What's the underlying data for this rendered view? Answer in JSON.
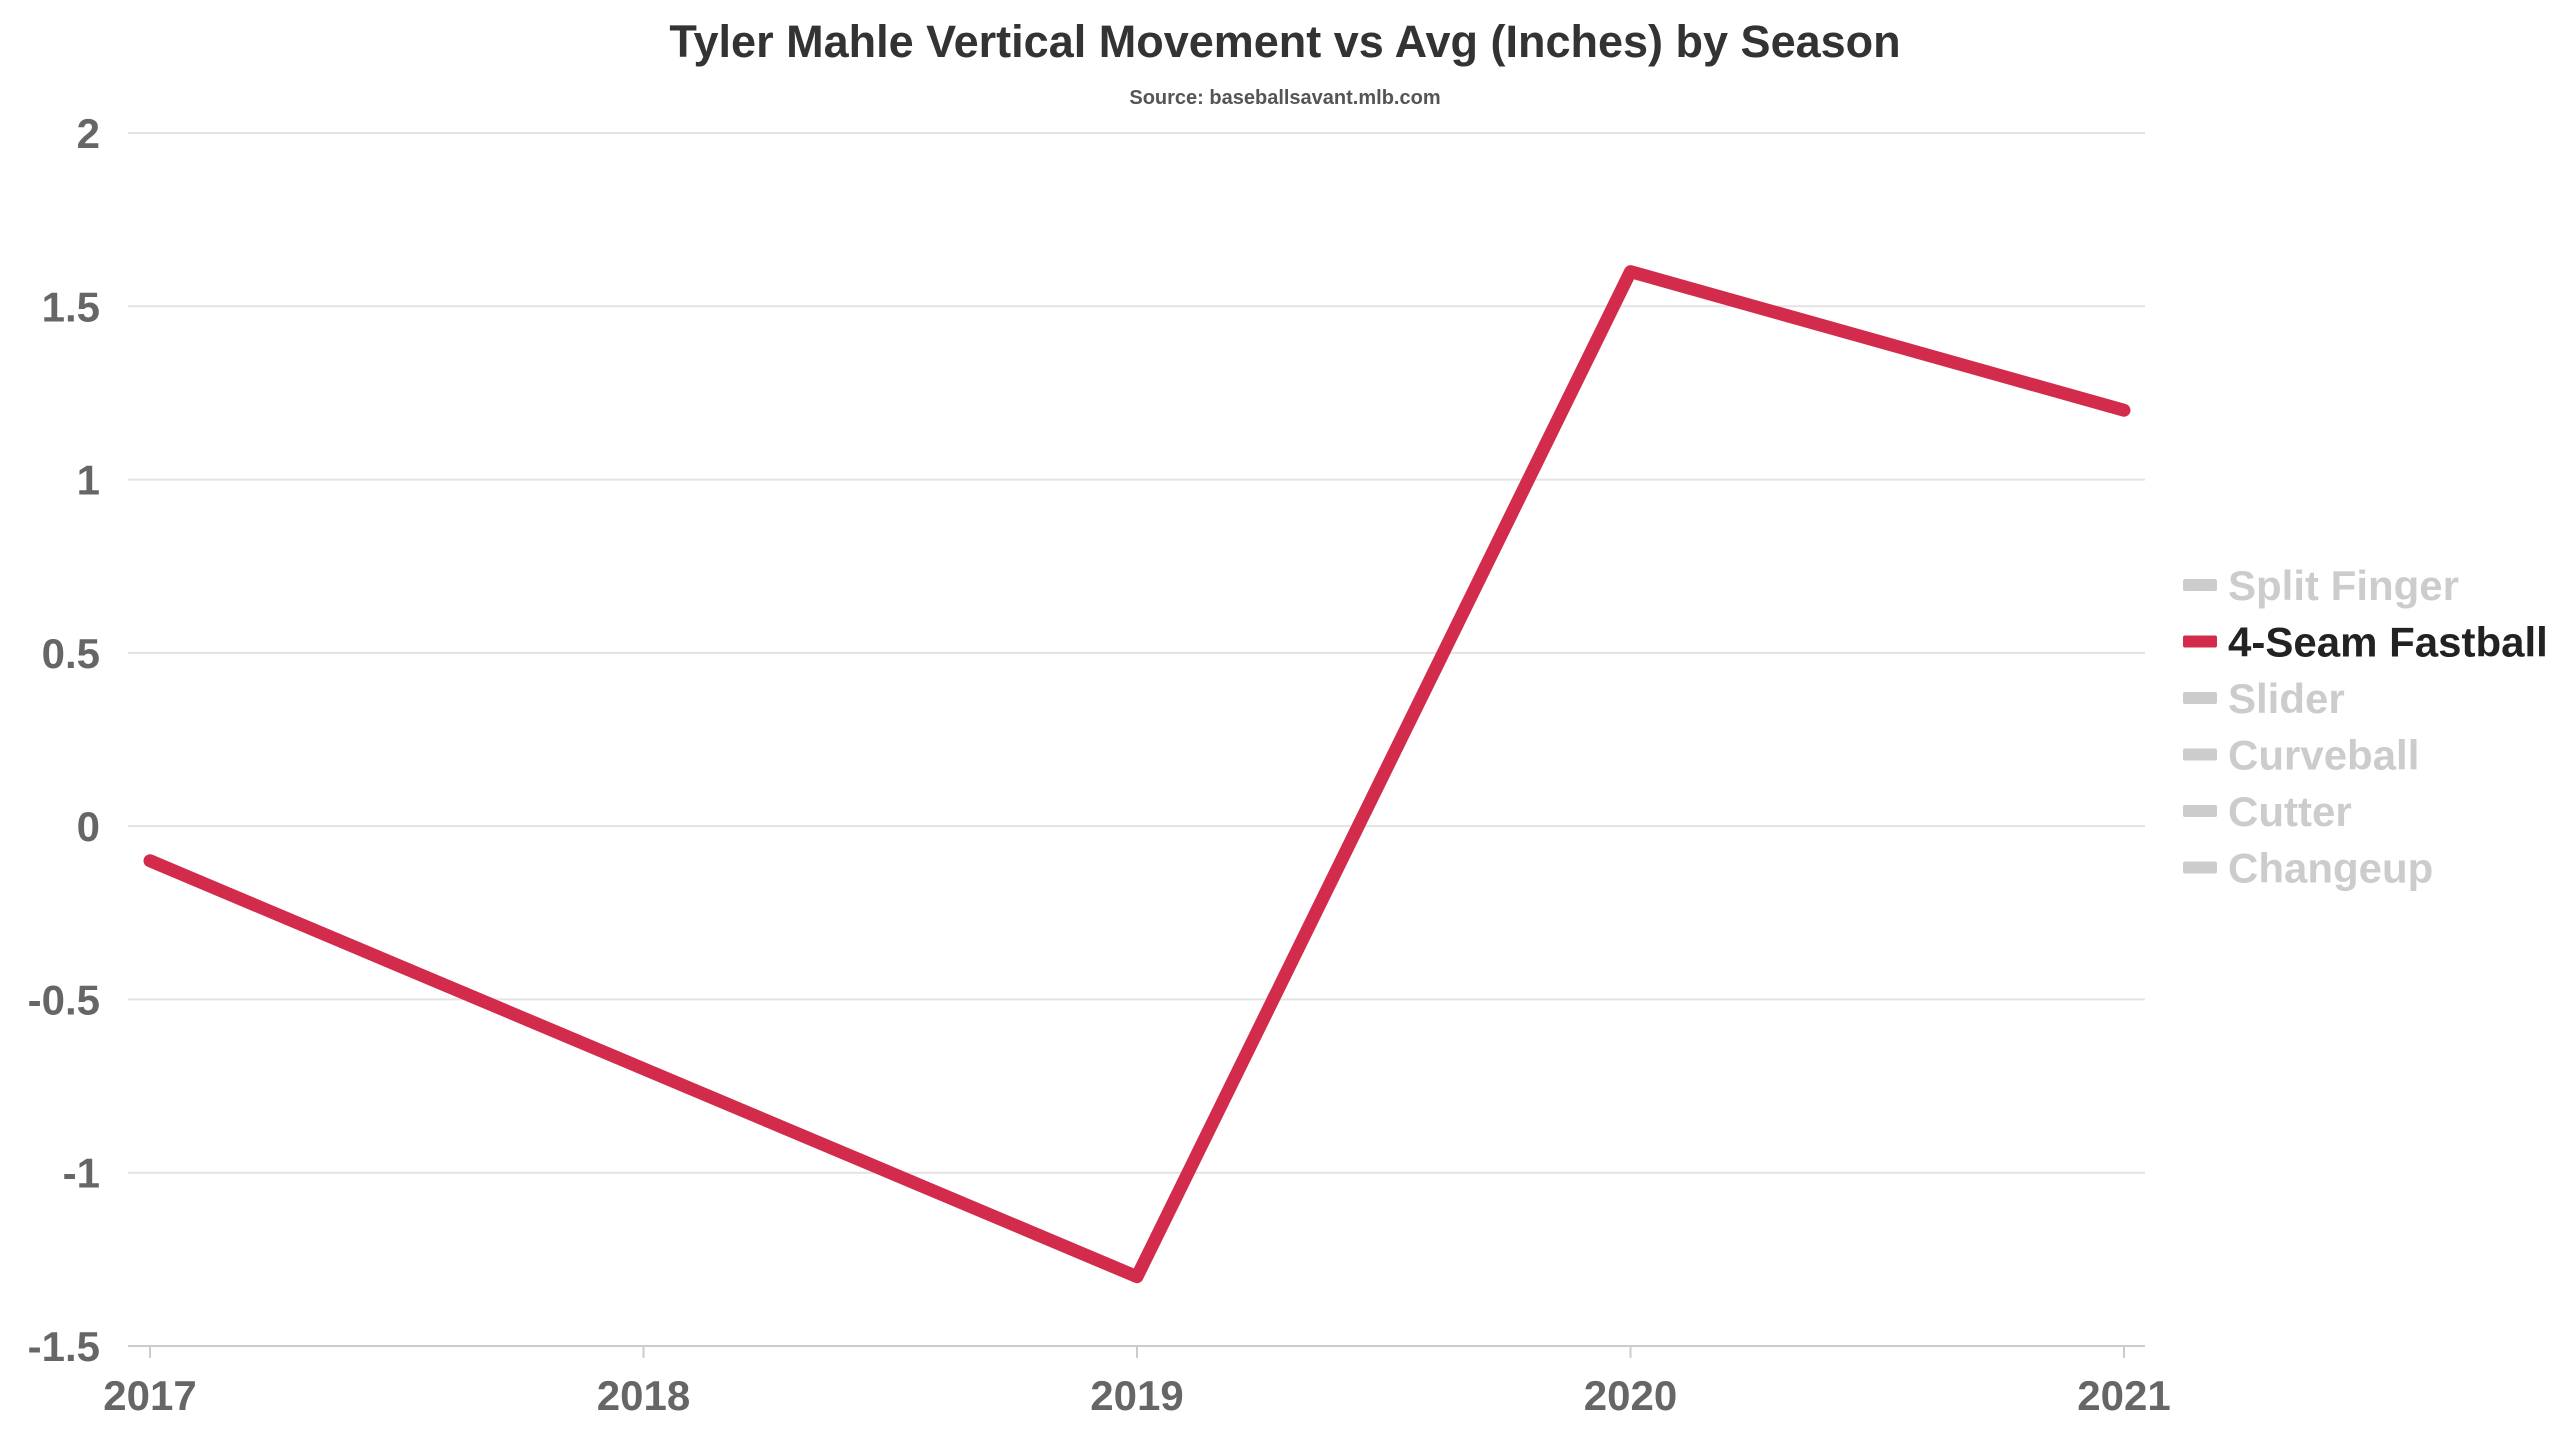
{
  "chart_data": {
    "type": "line",
    "title": "Tyler Mahle Vertical Movement vs Avg (Inches) by Season",
    "subtitle": "Source: baseballsavant.mlb.com",
    "xlabel": "",
    "ylabel": "",
    "x": [
      "2017",
      "2018",
      "2019",
      "2020",
      "2021"
    ],
    "ylim": [
      -1.5,
      2
    ],
    "yticks": [
      2,
      1.5,
      1,
      0.5,
      0,
      -0.5,
      -1,
      -1.5
    ],
    "ytick_labels": [
      "2",
      "1.5",
      "1",
      "0.5",
      "0",
      "-0.5",
      "-1",
      "-1.5"
    ],
    "grid": true,
    "legend_position": "right",
    "series": [
      {
        "name": "4-Seam Fastball",
        "color": "#d22b4b",
        "values": [
          -0.1,
          -0.7,
          -1.3,
          1.6,
          1.2
        ]
      }
    ],
    "legend": [
      {
        "label": "Split Finger",
        "color": "#cccccc",
        "active": false
      },
      {
        "label": "4-Seam Fastball",
        "color": "#d22b4b",
        "active": true
      },
      {
        "label": "Slider",
        "color": "#cccccc",
        "active": false
      },
      {
        "label": "Curveball",
        "color": "#cccccc",
        "active": false
      },
      {
        "label": "Cutter",
        "color": "#cccccc",
        "active": false
      },
      {
        "label": "Changeup",
        "color": "#cccccc",
        "active": false
      }
    ]
  }
}
